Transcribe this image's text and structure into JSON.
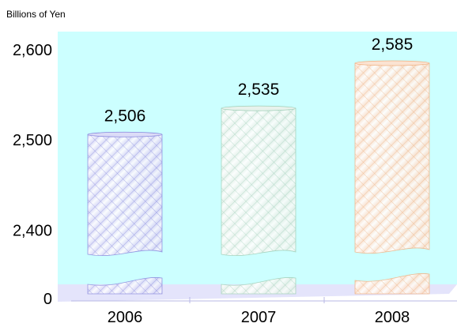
{
  "chart_data": {
    "type": "bar",
    "unit_label": "Billions of Yen",
    "categories": [
      "2006",
      "2007",
      "2008"
    ],
    "values": [
      2506,
      2535,
      2585
    ],
    "data_labels": [
      "2,506",
      "2,535",
      "2,585"
    ],
    "y_ticks": [
      {
        "value": 0,
        "label": "0"
      },
      {
        "value": 2400,
        "label": "2,400"
      },
      {
        "value": 2500,
        "label": "2,500"
      },
      {
        "value": 2600,
        "label": "2,600"
      }
    ],
    "axis_break": true,
    "upper_range": [
      2340,
      2620
    ],
    "bar_style": "cylinder",
    "colors": {
      "plot_background": "#ccffff",
      "floor": "#e4e4fb",
      "bars": [
        "#8888dd",
        "#a0cfb8",
        "#f0b080"
      ],
      "bar_fills": [
        "#dcdcf7",
        "#e8f2ec",
        "#fbe3d2"
      ]
    }
  }
}
